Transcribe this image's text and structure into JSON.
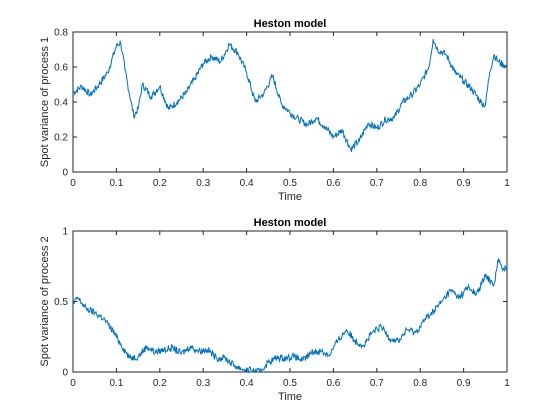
{
  "chart_data": [
    {
      "type": "line",
      "title": "Heston model",
      "xlabel": "Time",
      "ylabel": "Spot variance of process 1",
      "xlim": [
        0,
        1
      ],
      "ylim": [
        0,
        0.8
      ],
      "xticks": [
        0,
        0.1,
        0.2,
        0.3,
        0.4,
        0.5,
        0.6,
        0.7,
        0.8,
        0.9,
        1
      ],
      "xtick_labels": [
        "0",
        "0.1",
        "0.2",
        "0.3",
        "0.4",
        "0.5",
        "0.6",
        "0.7",
        "0.8",
        "0.9",
        "1"
      ],
      "yticks": [
        0,
        0.2,
        0.4,
        0.6,
        0.8
      ],
      "ytick_labels": [
        "0",
        "0.2",
        "0.4",
        "0.6",
        "0.8"
      ],
      "grid": false,
      "line_color": "#0072BD",
      "series": [
        {
          "x": [
            0,
            0.02,
            0.04,
            0.06,
            0.08,
            0.1,
            0.11,
            0.12,
            0.14,
            0.15,
            0.16,
            0.18,
            0.2,
            0.22,
            0.24,
            0.26,
            0.28,
            0.3,
            0.32,
            0.34,
            0.36,
            0.38,
            0.4,
            0.42,
            0.44,
            0.46,
            0.48,
            0.5,
            0.52,
            0.54,
            0.56,
            0.58,
            0.6,
            0.62,
            0.64,
            0.66,
            0.68,
            0.7,
            0.72,
            0.74,
            0.76,
            0.78,
            0.8,
            0.82,
            0.83,
            0.84,
            0.86,
            0.88,
            0.9,
            0.92,
            0.94,
            0.95,
            0.96,
            0.97,
            0.98,
            1
          ],
          "y": [
            0.45,
            0.49,
            0.44,
            0.5,
            0.57,
            0.72,
            0.74,
            0.58,
            0.32,
            0.36,
            0.5,
            0.43,
            0.49,
            0.36,
            0.4,
            0.45,
            0.53,
            0.62,
            0.66,
            0.63,
            0.73,
            0.68,
            0.57,
            0.4,
            0.45,
            0.55,
            0.39,
            0.34,
            0.3,
            0.27,
            0.31,
            0.26,
            0.2,
            0.24,
            0.13,
            0.18,
            0.28,
            0.25,
            0.3,
            0.31,
            0.4,
            0.44,
            0.5,
            0.6,
            0.76,
            0.7,
            0.67,
            0.57,
            0.52,
            0.47,
            0.4,
            0.38,
            0.57,
            0.67,
            0.63,
            0.6
          ]
        }
      ]
    },
    {
      "type": "line",
      "title": "Heston model",
      "xlabel": "Time",
      "ylabel": "Spot variance of process 2",
      "xlim": [
        0,
        1
      ],
      "ylim": [
        0,
        1
      ],
      "xticks": [
        0,
        0.1,
        0.2,
        0.3,
        0.4,
        0.5,
        0.6,
        0.7,
        0.8,
        0.9,
        1
      ],
      "xtick_labels": [
        "0",
        "0.1",
        "0.2",
        "0.3",
        "0.4",
        "0.5",
        "0.6",
        "0.7",
        "0.8",
        "0.9",
        "1"
      ],
      "yticks": [
        0,
        0.5,
        1
      ],
      "ytick_labels": [
        "0",
        "0.5",
        "1"
      ],
      "grid": false,
      "line_color": "#0072BD",
      "series": [
        {
          "x": [
            0,
            0.01,
            0.03,
            0.05,
            0.07,
            0.09,
            0.11,
            0.13,
            0.15,
            0.17,
            0.19,
            0.21,
            0.23,
            0.25,
            0.27,
            0.29,
            0.31,
            0.33,
            0.35,
            0.37,
            0.39,
            0.41,
            0.43,
            0.45,
            0.47,
            0.49,
            0.51,
            0.53,
            0.55,
            0.57,
            0.59,
            0.61,
            0.63,
            0.65,
            0.67,
            0.69,
            0.71,
            0.73,
            0.75,
            0.77,
            0.79,
            0.81,
            0.83,
            0.85,
            0.87,
            0.89,
            0.91,
            0.93,
            0.95,
            0.97,
            0.98,
            0.99,
            1
          ],
          "y": [
            0.47,
            0.53,
            0.45,
            0.42,
            0.38,
            0.3,
            0.2,
            0.1,
            0.11,
            0.18,
            0.14,
            0.16,
            0.17,
            0.13,
            0.18,
            0.15,
            0.16,
            0.1,
            0.1,
            0.05,
            0.02,
            0.01,
            0.0,
            0.07,
            0.1,
            0.1,
            0.11,
            0.08,
            0.14,
            0.15,
            0.12,
            0.22,
            0.3,
            0.22,
            0.19,
            0.28,
            0.32,
            0.24,
            0.22,
            0.3,
            0.28,
            0.37,
            0.43,
            0.5,
            0.58,
            0.53,
            0.6,
            0.55,
            0.68,
            0.62,
            0.8,
            0.72,
            0.75
          ]
        }
      ]
    }
  ]
}
